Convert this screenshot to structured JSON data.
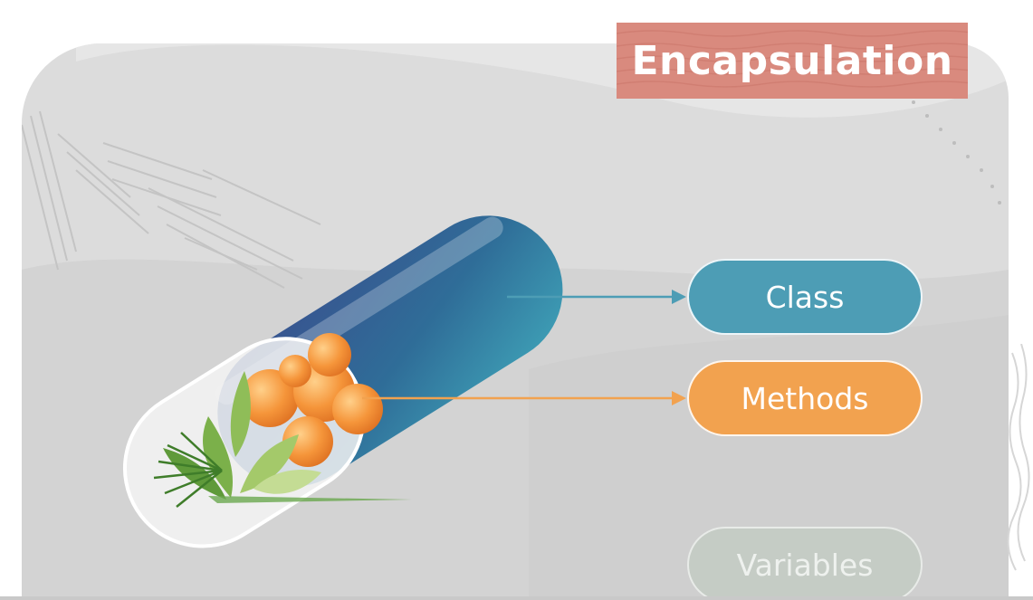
{
  "title": "Encapsulation",
  "labels": {
    "class": "Class",
    "methods": "Methods",
    "variables": "Variables"
  },
  "colors": {
    "class_accent": "#4d9db5",
    "methods_accent": "#f2a24f",
    "variables_accent": "#c5ccc5",
    "title_banner": "#d98a7e",
    "capsule_dark": "#2f4f8a",
    "capsule_teal": "#3f93ad"
  },
  "icons": [
    "capsule-illustration",
    "berries-icon",
    "leaves-icon"
  ]
}
